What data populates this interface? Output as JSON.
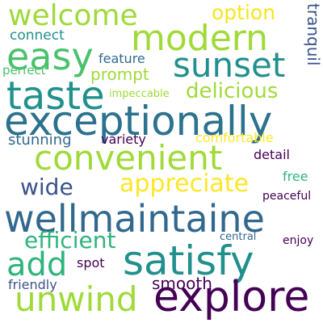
{
  "words": {
    "welcome": {
      "text": "welcome",
      "color": "#a0da39"
    },
    "modern": {
      "text": "modern",
      "color": "#a0da39"
    },
    "option": {
      "text": "option",
      "color": "#f4e61e"
    },
    "tranquil": {
      "text": "tranquil",
      "color": "#3b528b"
    },
    "connect": {
      "text": "connect",
      "color": "#21908d"
    },
    "easy": {
      "text": "easy",
      "color": "#4ac16d"
    },
    "sunset": {
      "text": "sunset",
      "color": "#21908d"
    },
    "feature": {
      "text": "feature",
      "color": "#31688e"
    },
    "perfect": {
      "text": "perfect",
      "color": "#4ac16d"
    },
    "prompt": {
      "text": "prompt",
      "color": "#a0da39"
    },
    "taste": {
      "text": "taste",
      "color": "#21918c"
    },
    "delicious": {
      "text": "delicious",
      "color": "#a0da39"
    },
    "impeccable": {
      "text": "impeccable",
      "color": "#a0da39"
    },
    "exceptionally": {
      "text": "exceptionally",
      "color": "#2c728e"
    },
    "stunning": {
      "text": "stunning",
      "color": "#31688e"
    },
    "variety": {
      "text": "variety",
      "color": "#440154"
    },
    "comfortable": {
      "text": "comfortable",
      "color": "#fde725"
    },
    "convenient": {
      "text": "convenient",
      "color": "#a0da39"
    },
    "detail": {
      "text": "detail",
      "color": "#440154"
    },
    "appreciate": {
      "text": "appreciate",
      "color": "#fde725"
    },
    "wide": {
      "text": "wide",
      "color": "#3b528b"
    },
    "free": {
      "text": "free",
      "color": "#2fb47c"
    },
    "peaceful": {
      "text": "peaceful",
      "color": "#440154"
    },
    "wellmaintaine": {
      "text": "wellmaintaine",
      "color": "#31688e"
    },
    "efficient": {
      "text": "efficient",
      "color": "#2fb47c"
    },
    "central": {
      "text": "central",
      "color": "#31688e"
    },
    "enjoy": {
      "text": "enjoy",
      "color": "#440154"
    },
    "add": {
      "text": "add",
      "color": "#2fb47c"
    },
    "satisfy": {
      "text": "satisfy",
      "color": "#21908d"
    },
    "spot": {
      "text": "spot",
      "color": "#440154"
    },
    "smooth": {
      "text": "smooth",
      "color": "#440154"
    },
    "friendly": {
      "text": "friendly",
      "color": "#3b528b"
    },
    "unwind": {
      "text": "unwind",
      "color": "#a0da39"
    },
    "explore": {
      "text": "explore",
      "color": "#440154"
    }
  }
}
